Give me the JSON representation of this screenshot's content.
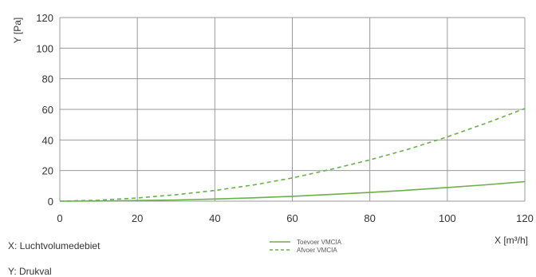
{
  "chart_data": {
    "type": "line",
    "ylabel": "Y [Pa]",
    "xlabel": "X [m³/h]",
    "xlim": [
      0,
      120
    ],
    "ylim": [
      0,
      120
    ],
    "x_ticks": [
      0,
      20,
      40,
      60,
      80,
      100,
      120
    ],
    "y_ticks": [
      0,
      20,
      40,
      60,
      80,
      100,
      120
    ],
    "grid": true,
    "legend_position": "bottom-center",
    "series": [
      {
        "name": "Toevoer VMCIA",
        "style": "solid",
        "color": "#6ab04c",
        "x": [
          0,
          10,
          20,
          30,
          40,
          50,
          60,
          70,
          80,
          90,
          100,
          110,
          120
        ],
        "y": [
          0,
          0.1,
          0.4,
          0.8,
          1.4,
          2.2,
          3.2,
          4.4,
          5.7,
          7.2,
          8.9,
          10.7,
          12.8
        ]
      },
      {
        "name": "Afvoer VMCIA",
        "style": "dashed",
        "color": "#6ab04c",
        "x": [
          0,
          10,
          20,
          30,
          40,
          50,
          60,
          70,
          80,
          90,
          100,
          110,
          120
        ],
        "y": [
          0,
          0.6,
          2.1,
          4.2,
          7.0,
          10.6,
          15.2,
          20.8,
          27.0,
          34.0,
          42.0,
          51.0,
          60.5
        ]
      }
    ]
  },
  "notes": {
    "x_description": "X: Luchtvolumedebiet",
    "y_description": "Y: Drukval"
  }
}
